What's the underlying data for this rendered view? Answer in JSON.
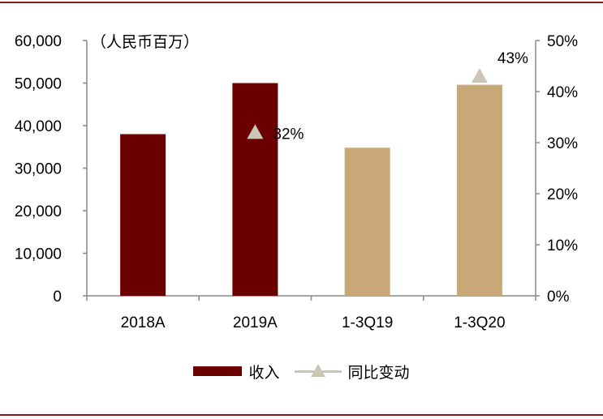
{
  "chart_data": {
    "type": "bar",
    "unit_label": "（人民币百万）",
    "categories": [
      "2018A",
      "2019A",
      "1-3Q19",
      "1-3Q20"
    ],
    "series": [
      {
        "name": "收入",
        "values": [
          38000,
          50000,
          34800,
          49600
        ],
        "colors": [
          "#6b0000",
          "#6b0000",
          "#c9a878",
          "#c9a878"
        ]
      },
      {
        "name": "同比变动",
        "kind": "line-marker",
        "axis": "right",
        "values": [
          null,
          0.32,
          null,
          0.43
        ],
        "data_labels": [
          null,
          "32%",
          null,
          "43%"
        ],
        "color": "#cbc6b6"
      }
    ],
    "y_left": {
      "min": 0,
      "max": 60000,
      "ticks": [
        "0",
        "10,000",
        "20,000",
        "30,000",
        "40,000",
        "50,000",
        "60,000"
      ]
    },
    "y_right": {
      "min": 0,
      "max": 0.5,
      "ticks": [
        "0%",
        "10%",
        "20%",
        "30%",
        "40%",
        "50%"
      ]
    },
    "grid": false,
    "legend_position": "bottom"
  }
}
